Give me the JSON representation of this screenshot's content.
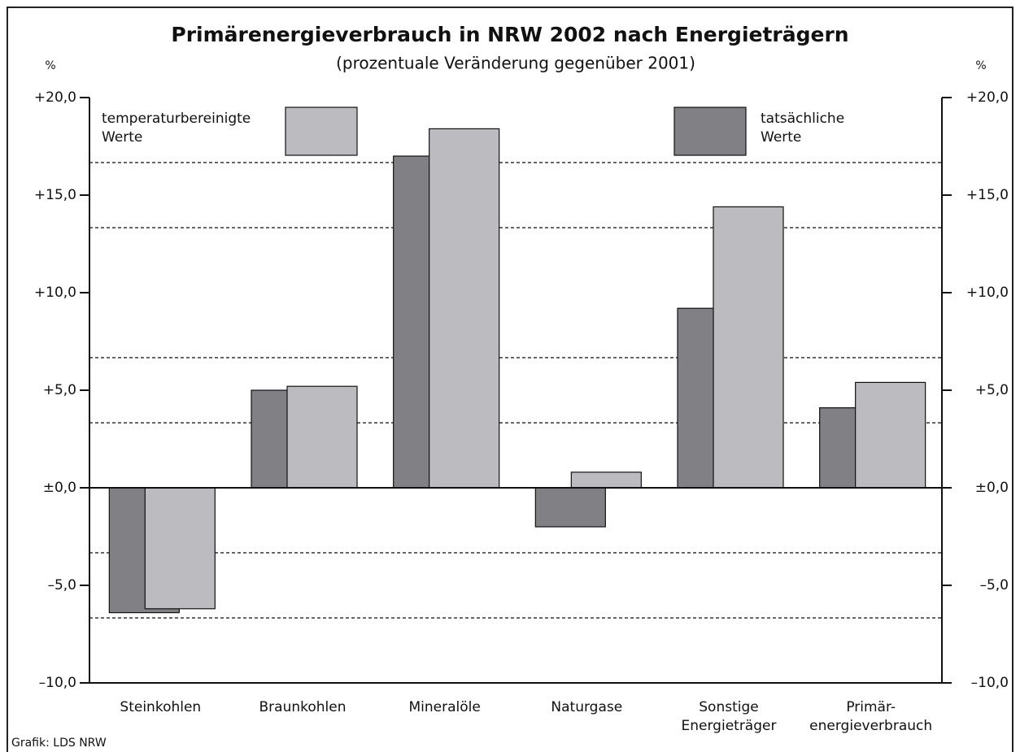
{
  "chart_data": {
    "type": "bar",
    "title": "Primärenergieverbrauch in NRW 2002 nach Energieträgern",
    "subtitle": "(prozentuale Veränderung gegenüber 2001)",
    "ylabel": "%",
    "y2label": "%",
    "source": "Grafik: LDS NRW",
    "categories": [
      "Steinkohlen",
      "Braunkohlen",
      "Mineralöle",
      "Naturgase",
      "Sonstige\nEnergieträger",
      "Primär-\nenergieverbrauch"
    ],
    "series": [
      {
        "name": "tatsächliche\nWerte",
        "color": "#808085",
        "values": [
          -6.4,
          5.0,
          17.0,
          -2.0,
          9.2,
          4.1
        ]
      },
      {
        "name": "temperaturbereinigte\nWerte",
        "color": "#bcbcc0",
        "values": [
          -6.2,
          5.2,
          18.4,
          0.8,
          14.4,
          5.4
        ]
      }
    ],
    "ylim": [
      -10,
      20
    ],
    "yticks": [
      {
        "value": -10,
        "label": "–10,0"
      },
      {
        "value": -5,
        "label": "–5,0"
      },
      {
        "value": 0,
        "label": "±0,0"
      },
      {
        "value": 5,
        "label": "+5,0"
      },
      {
        "value": 10,
        "label": "+10,0"
      },
      {
        "value": 15,
        "label": "+15,0"
      },
      {
        "value": 20,
        "label": "+20,0"
      }
    ],
    "y2lim": [
      -10,
      20
    ],
    "y2ticks": [
      {
        "value": -10,
        "label": "–10,0"
      },
      {
        "value": -5,
        "label": "–5,0"
      },
      {
        "value": 0,
        "label": "±0,0"
      },
      {
        "value": 5,
        "label": "+5,0"
      },
      {
        "value": 10,
        "label": "+10,0"
      },
      {
        "value": 15,
        "label": "+15,0"
      },
      {
        "value": 20,
        "label": "+20,0"
      }
    ],
    "grid_lines": [
      -6.67,
      -3.33,
      3.33,
      6.67,
      13.33,
      16.67
    ]
  }
}
